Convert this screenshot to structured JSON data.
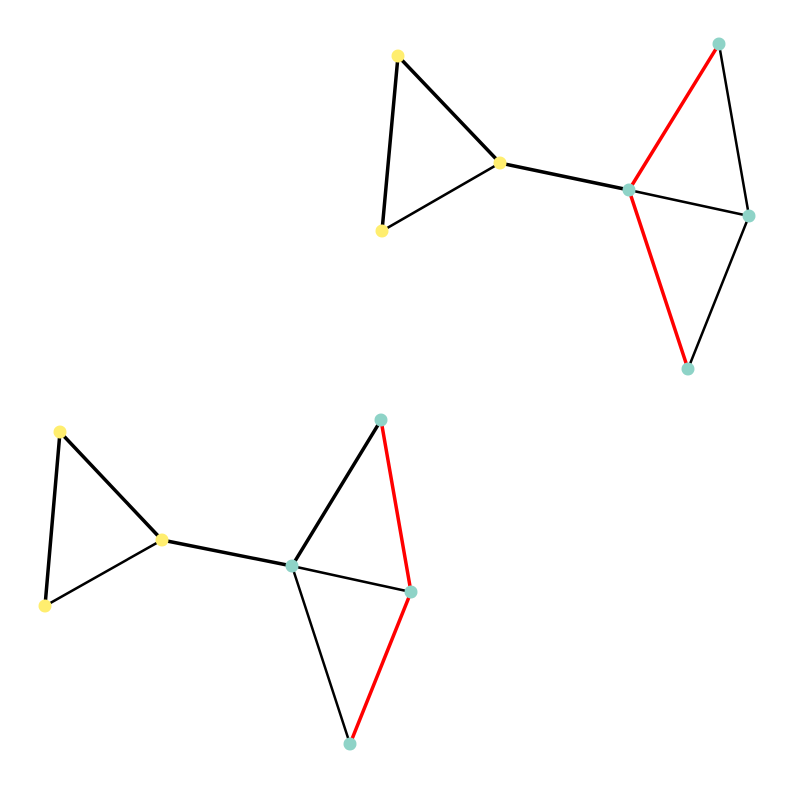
{
  "colors": {
    "background": "#ffffff",
    "edge_default": "#000000",
    "edge_highlight": "#ff0000",
    "node_yellow": "#ffee6f",
    "node_teal": "#8ed3c7"
  },
  "graphs": [
    {
      "name": "graph-top-right",
      "nodes": [
        {
          "id": "a1",
          "group": "yellow"
        },
        {
          "id": "a2",
          "group": "yellow"
        },
        {
          "id": "a3",
          "group": "yellow"
        },
        {
          "id": "b1",
          "group": "teal"
        },
        {
          "id": "b2",
          "group": "teal"
        },
        {
          "id": "b3",
          "group": "teal"
        },
        {
          "id": "b4",
          "group": "teal"
        }
      ],
      "edges": [
        {
          "from": "a1",
          "to": "a2",
          "style": "bold"
        },
        {
          "from": "a1",
          "to": "a3",
          "style": "bold"
        },
        {
          "from": "a2",
          "to": "a3",
          "style": "normal"
        },
        {
          "from": "a3",
          "to": "b1",
          "style": "bold"
        },
        {
          "from": "b1",
          "to": "b2",
          "style": "highlight"
        },
        {
          "from": "b1",
          "to": "b3",
          "style": "normal"
        },
        {
          "from": "b1",
          "to": "b4",
          "style": "highlight"
        },
        {
          "from": "b2",
          "to": "b3",
          "style": "normal"
        },
        {
          "from": "b3",
          "to": "b4",
          "style": "normal"
        }
      ]
    },
    {
      "name": "graph-bottom-left",
      "nodes": [
        {
          "id": "a1",
          "group": "yellow"
        },
        {
          "id": "a2",
          "group": "yellow"
        },
        {
          "id": "a3",
          "group": "yellow"
        },
        {
          "id": "b1",
          "group": "teal"
        },
        {
          "id": "b2",
          "group": "teal"
        },
        {
          "id": "b3",
          "group": "teal"
        },
        {
          "id": "b4",
          "group": "teal"
        }
      ],
      "edges": [
        {
          "from": "a1",
          "to": "a2",
          "style": "bold"
        },
        {
          "from": "a1",
          "to": "a3",
          "style": "bold"
        },
        {
          "from": "a2",
          "to": "a3",
          "style": "normal"
        },
        {
          "from": "a3",
          "to": "b1",
          "style": "bold"
        },
        {
          "from": "b1",
          "to": "b2",
          "style": "bold"
        },
        {
          "from": "b1",
          "to": "b3",
          "style": "normal"
        },
        {
          "from": "b1",
          "to": "b4",
          "style": "normal"
        },
        {
          "from": "b2",
          "to": "b3",
          "style": "highlight"
        },
        {
          "from": "b3",
          "to": "b4",
          "style": "highlight"
        }
      ]
    }
  ]
}
